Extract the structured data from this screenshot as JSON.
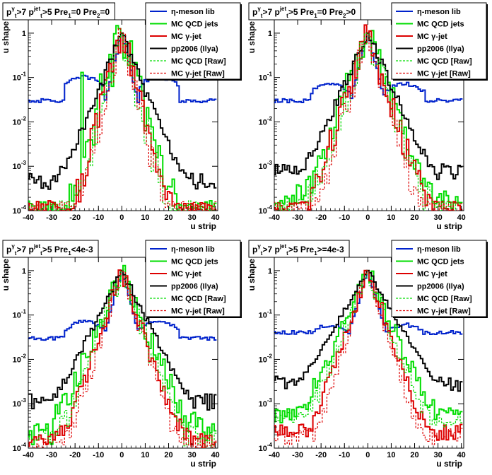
{
  "figure": {
    "background": "#ffffff",
    "series_styles": [
      {
        "color": "#0022cc",
        "dash": "solid"
      },
      {
        "color": "#00dd00",
        "dash": "solid"
      },
      {
        "color": "#dd0000",
        "dash": "solid"
      },
      {
        "color": "#000000",
        "dash": "solid"
      },
      {
        "color": "#00dd00",
        "dash": "dashed"
      },
      {
        "color": "#dd0000",
        "dash": "dashed"
      }
    ],
    "legend_labels": [
      "η-meson lib",
      "MC QCD jets",
      "MC γ-jet",
      "pp2006 (Ilya)",
      "MC QCD [Raw]",
      "MC γ-jet [Raw]"
    ]
  },
  "chart_data": [
    {
      "type": "line",
      "title_parts": [
        "p",
        "γ",
        "t",
        ">7  p",
        "jet",
        "t",
        ">5  Pre",
        "1",
        "=0  Pre",
        "2",
        "=0"
      ],
      "xlabel": "u strip",
      "ylabel": "u shape",
      "xlim": [
        -40,
        41
      ],
      "ylim": [
        0.0001,
        2
      ],
      "yscale": "log",
      "xticks": [
        -40,
        -30,
        -20,
        -10,
        0,
        10,
        20,
        30,
        40
      ],
      "yticks": [
        {
          "v": 0.0001,
          "b": "10",
          "e": "-4"
        },
        {
          "v": 0.001,
          "b": "10",
          "e": "-3"
        },
        {
          "v": 0.01,
          "b": "10",
          "e": "-2"
        },
        {
          "v": 0.1,
          "b": "10",
          "e": "-1"
        },
        {
          "v": 1,
          "b": "1",
          "e": ""
        }
      ],
      "legend": "top-right",
      "series": [
        {
          "name": "η-meson lib",
          "profile": {
            "base": 0.03,
            "bump": [
              -24,
              -8,
              0.085
            ],
            "bump2": [
              8,
              24,
              0.085
            ],
            "peak": 1.0,
            "width": 3.2,
            "noise": 0.2
          }
        },
        {
          "name": "MC QCD jets",
          "profile": {
            "base": 0.0001,
            "peak": 1.0,
            "width": 3.0,
            "noise": 1.4,
            "lowfloor": 0.00012,
            "spikes": [
              [
                -17,
                0.13
              ],
              [
                -9,
                0.12
              ],
              [
                9,
                0.05
              ],
              [
                10,
                0.008
              ]
            ]
          }
        },
        {
          "name": "MC γ-jet",
          "profile": {
            "base": 0.0001,
            "peak": 1.0,
            "width": 2.8,
            "noise": 1.0,
            "lowfloor": 0.00012
          }
        },
        {
          "name": "pp2006 (Ilya)",
          "profile": {
            "base": 0.0008,
            "peak": 1.0,
            "width": 4.2,
            "noise": 0.35,
            "lowfloor": 0.0005
          }
        },
        {
          "name": "MC QCD [Raw]",
          "profile": {
            "base": 0.0001,
            "peak": 1.0,
            "width": 2.6,
            "noise": 1.2,
            "lowfloor": 0.00012
          }
        },
        {
          "name": "MC γ-jet [Raw]",
          "profile": {
            "base": 0.0001,
            "peak": 1.0,
            "width": 2.4,
            "noise": 1.0,
            "lowfloor": 0.00012
          }
        }
      ]
    },
    {
      "type": "line",
      "title_parts": [
        "p",
        "γ",
        "t",
        ">7  p",
        "jet",
        "t",
        ">5  Pre",
        "1",
        "=0  Pre",
        "2",
        ">0"
      ],
      "xlabel": "u strip",
      "ylabel": "u shape",
      "xlim": [
        -40,
        41
      ],
      "ylim": [
        0.0001,
        2
      ],
      "yscale": "log",
      "xticks": [
        -40,
        -30,
        -20,
        -10,
        0,
        10,
        20,
        30,
        40
      ],
      "yticks": [
        {
          "v": 0.0001,
          "b": "10",
          "e": "-4"
        },
        {
          "v": 0.001,
          "b": "10",
          "e": "-3"
        },
        {
          "v": 0.01,
          "b": "10",
          "e": "-2"
        },
        {
          "v": 0.1,
          "b": "10",
          "e": "-1"
        },
        {
          "v": 1,
          "b": "1",
          "e": ""
        }
      ],
      "legend": "top-right",
      "series": [
        {
          "name": "η-meson lib",
          "profile": {
            "base": 0.03,
            "bump": [
              -24,
              -8,
              0.06
            ],
            "bump2": [
              8,
              24,
              0.06
            ],
            "peak": 1.0,
            "width": 3.4,
            "noise": 0.2
          }
        },
        {
          "name": "MC QCD jets",
          "profile": {
            "base": 0.0003,
            "peak": 1.0,
            "width": 3.8,
            "noise": 1.0,
            "lowfloor": 0.00012
          }
        },
        {
          "name": "MC γ-jet",
          "profile": {
            "base": 0.0002,
            "peak": 1.0,
            "width": 3.4,
            "noise": 0.9,
            "lowfloor": 0.00012
          }
        },
        {
          "name": "pp2006 (Ilya)",
          "profile": {
            "base": 0.0009,
            "peak": 1.0,
            "width": 4.6,
            "noise": 0.35,
            "lowfloor": 0.0008
          }
        },
        {
          "name": "MC QCD [Raw]",
          "profile": {
            "base": 0.0002,
            "peak": 1.0,
            "width": 3.4,
            "noise": 1.0,
            "lowfloor": 0.00012
          }
        },
        {
          "name": "MC γ-jet [Raw]",
          "profile": {
            "base": 0.0001,
            "peak": 1.0,
            "width": 3.0,
            "noise": 0.9,
            "lowfloor": 0.00012
          }
        }
      ]
    },
    {
      "type": "line",
      "title_parts": [
        "p",
        "γ",
        "t",
        ">7  p",
        "jet",
        "t",
        ">5  Pre",
        "1",
        "<4e-3",
        "",
        ""
      ],
      "xlabel": "u strip",
      "ylabel": "u shape",
      "xlim": [
        -40,
        41
      ],
      "ylim": [
        0.0001,
        2
      ],
      "yscale": "log",
      "xticks": [
        -40,
        -30,
        -20,
        -10,
        0,
        10,
        20,
        30,
        40
      ],
      "yticks": [
        {
          "v": 0.0001,
          "b": "10",
          "e": "-4"
        },
        {
          "v": 0.001,
          "b": "10",
          "e": "-3"
        },
        {
          "v": 0.01,
          "b": "10",
          "e": "-2"
        },
        {
          "v": 0.1,
          "b": "10",
          "e": "-1"
        },
        {
          "v": 1,
          "b": "1",
          "e": ""
        }
      ],
      "legend": "top-right",
      "series": [
        {
          "name": "η-meson lib",
          "profile": {
            "base": 0.03,
            "bump": [
              -24,
              -8,
              0.06
            ],
            "bump2": [
              8,
              24,
              0.06
            ],
            "peak": 1.0,
            "width": 3.6,
            "noise": 0.2
          }
        },
        {
          "name": "MC QCD jets",
          "profile": {
            "base": 0.0006,
            "peak": 1.0,
            "width": 4.2,
            "noise": 0.8,
            "lowfloor": 0.0002
          }
        },
        {
          "name": "MC γ-jet",
          "profile": {
            "base": 0.0003,
            "peak": 1.0,
            "width": 3.5,
            "noise": 0.6,
            "lowfloor": 0.00015
          }
        },
        {
          "name": "pp2006 (Ilya)",
          "profile": {
            "base": 0.0012,
            "peak": 1.0,
            "width": 5.2,
            "noise": 0.25,
            "lowfloor": 0.0012
          }
        },
        {
          "name": "MC QCD [Raw]",
          "profile": {
            "base": 0.0004,
            "peak": 1.0,
            "width": 3.6,
            "noise": 0.8,
            "lowfloor": 0.00015
          }
        },
        {
          "name": "MC γ-jet [Raw]",
          "profile": {
            "base": 0.0002,
            "peak": 1.0,
            "width": 3.2,
            "noise": 0.6,
            "lowfloor": 0.00012
          }
        }
      ]
    },
    {
      "type": "line",
      "title_parts": [
        "p",
        "γ",
        "t",
        ">7  p",
        "jet",
        "t",
        ">5  Pre",
        "1",
        ">=4e-3",
        "",
        ""
      ],
      "xlabel": "u strip",
      "ylabel": "u shape",
      "xlim": [
        -40,
        41
      ],
      "ylim": [
        0.0001,
        2
      ],
      "yscale": "log",
      "xticks": [
        -40,
        -30,
        -20,
        -10,
        0,
        10,
        20,
        30,
        40
      ],
      "yticks": [
        {
          "v": 0.0001,
          "b": "10",
          "e": "-4"
        },
        {
          "v": 0.001,
          "b": "10",
          "e": "-3"
        },
        {
          "v": 0.01,
          "b": "10",
          "e": "-2"
        },
        {
          "v": 0.1,
          "b": "10",
          "e": "-1"
        },
        {
          "v": 1,
          "b": "1",
          "e": ""
        }
      ],
      "legend": "top-right",
      "series": [
        {
          "name": "η-meson lib",
          "profile": {
            "base": 0.04,
            "bump": [
              -24,
              -8,
              0.05
            ],
            "bump2": [
              8,
              24,
              0.05
            ],
            "peak": 1.0,
            "width": 4.0,
            "noise": 0.2
          }
        },
        {
          "name": "MC QCD jets",
          "profile": {
            "base": 0.0007,
            "peak": 1.0,
            "width": 4.6,
            "noise": 0.6,
            "lowfloor": 0.0006
          }
        },
        {
          "name": "MC γ-jet",
          "profile": {
            "base": 0.0002,
            "peak": 1.0,
            "width": 3.6,
            "noise": 0.5,
            "lowfloor": 0.00025
          }
        },
        {
          "name": "pp2006 (Ilya)",
          "profile": {
            "base": 0.0025,
            "peak": 1.0,
            "width": 6.0,
            "noise": 0.15,
            "lowfloor": 0.003
          }
        },
        {
          "name": "MC QCD [Raw]",
          "profile": {
            "base": 0.0005,
            "peak": 1.0,
            "width": 4.0,
            "noise": 0.6,
            "lowfloor": 0.0005
          }
        },
        {
          "name": "MC γ-jet [Raw]",
          "profile": {
            "base": 0.0002,
            "peak": 1.0,
            "width": 3.2,
            "noise": 0.5,
            "lowfloor": 0.0002
          }
        }
      ]
    }
  ]
}
